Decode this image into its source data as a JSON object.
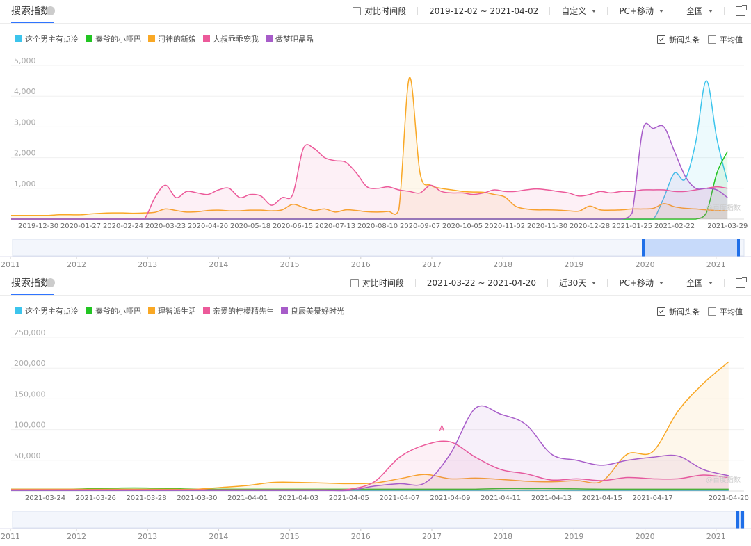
{
  "panels": [
    {
      "title": "搜索指数",
      "compare": "对比时间段",
      "date_range": "2019-12-02 ~ 2021-04-02",
      "period": "自定义",
      "device": "PC+移动",
      "region": "全国",
      "news": "新闻头条",
      "average": "平均值",
      "watermark": "@百度指数",
      "years": [
        "2011",
        "2012",
        "2013",
        "2014",
        "2015",
        "2016",
        "2017",
        "2018",
        "2019",
        "2020",
        "2021"
      ]
    },
    {
      "title": "搜索指数",
      "compare": "对比时间段",
      "date_range": "2021-03-22 ~ 2021-04-20",
      "period": "近30天",
      "device": "PC+移动",
      "region": "全国",
      "news": "新闻头条",
      "average": "平均值",
      "watermark": "@百度指数",
      "years": [
        "2011",
        "2012",
        "2013",
        "2014",
        "2015",
        "2016",
        "2017",
        "2018",
        "2019",
        "2020",
        "2021"
      ]
    }
  ],
  "chart_data": [
    {
      "type": "area",
      "grid": true,
      "ylim": [
        0,
        5000
      ],
      "yticks": [
        {
          "value": 1000,
          "label": "1,000"
        },
        {
          "value": 2000,
          "label": "2,000"
        },
        {
          "value": 3000,
          "label": "3,000"
        },
        {
          "value": 4000,
          "label": "4,000"
        },
        {
          "value": 5000,
          "label": "5,000"
        }
      ],
      "categories": [
        null,
        null,
        null,
        null,
        "2019-12-30",
        null,
        null,
        null,
        "2020-01-27",
        null,
        null,
        null,
        "2020-02-24",
        null,
        null,
        null,
        "2020-03-23",
        null,
        null,
        null,
        "2020-04-20",
        null,
        null,
        null,
        "2020-05-18",
        null,
        null,
        null,
        "2020-06-15",
        null,
        null,
        null,
        "2020-07-13",
        null,
        null,
        null,
        "2020-08-10",
        null,
        null,
        null,
        "2020-09-07",
        null,
        null,
        null,
        "2020-10-05",
        null,
        null,
        null,
        "2020-11-02",
        null,
        null,
        null,
        "2020-11-30",
        null,
        null,
        null,
        "2020-12-28",
        null,
        null,
        null,
        "2021-01-25",
        null,
        null,
        null,
        "2021-02-22",
        null,
        null,
        null,
        null,
        "2021-03-29"
      ],
      "series": [
        {
          "name": "这个男主有点冷",
          "color": "#3cc4ec",
          "values": [
            0,
            0,
            0,
            0,
            0,
            0,
            0,
            0,
            0,
            0,
            0,
            0,
            0,
            0,
            0,
            0,
            0,
            0,
            0,
            0,
            0,
            0,
            0,
            0,
            0,
            0,
            0,
            0,
            0,
            0,
            0,
            0,
            0,
            0,
            0,
            0,
            0,
            0,
            0,
            0,
            0,
            0,
            0,
            0,
            0,
            0,
            0,
            0,
            0,
            0,
            0,
            0,
            0,
            0,
            0,
            0,
            0,
            0,
            0,
            0,
            0,
            0,
            0,
            700,
            1500,
            1300,
            2500,
            4500,
            2600,
            1200
          ]
        },
        {
          "name": "秦爷的小哑巴",
          "color": "#22c522",
          "values": [
            0,
            0,
            0,
            0,
            0,
            0,
            0,
            0,
            0,
            0,
            0,
            0,
            0,
            0,
            0,
            0,
            0,
            0,
            0,
            0,
            0,
            0,
            0,
            0,
            0,
            0,
            0,
            0,
            0,
            0,
            0,
            0,
            0,
            0,
            0,
            0,
            0,
            0,
            0,
            0,
            0,
            0,
            0,
            0,
            0,
            0,
            0,
            0,
            0,
            0,
            0,
            0,
            0,
            0,
            0,
            0,
            0,
            0,
            0,
            0,
            0,
            0,
            0,
            0,
            0,
            0,
            0,
            200,
            1500,
            2200
          ]
        },
        {
          "name": "河神的新娘",
          "color": "#f9a825",
          "values": [
            120,
            120,
            120,
            120,
            120,
            120,
            140,
            140,
            140,
            170,
            190,
            200,
            200,
            190,
            200,
            220,
            330,
            280,
            230,
            240,
            280,
            290,
            270,
            270,
            290,
            290,
            270,
            300,
            480,
            380,
            280,
            330,
            230,
            300,
            280,
            240,
            230,
            250,
            300,
            4600,
            1500,
            1100,
            1000,
            950,
            900,
            880,
            870,
            800,
            720,
            420,
            330,
            300,
            300,
            290,
            270,
            260,
            420,
            300,
            290,
            300,
            330,
            330,
            350,
            500,
            400,
            350,
            330,
            300,
            280,
            270
          ]
        },
        {
          "name": "大叔乖乖宠我",
          "color": "#ec5a9a",
          "values": [
            0,
            0,
            0,
            0,
            0,
            0,
            0,
            0,
            0,
            0,
            0,
            0,
            0,
            0,
            0,
            700,
            1100,
            700,
            900,
            850,
            800,
            950,
            1000,
            700,
            800,
            750,
            450,
            700,
            800,
            2300,
            2300,
            2000,
            1900,
            1850,
            1500,
            1050,
            1000,
            1050,
            950,
            900,
            850,
            1100,
            900,
            850,
            850,
            800,
            850,
            950,
            900,
            900,
            950,
            980,
            950,
            900,
            850,
            750,
            800,
            900,
            850,
            900,
            900,
            950,
            950,
            950,
            900,
            900,
            950,
            1000,
            1050,
            1000
          ]
        },
        {
          "name": "做梦吧晶晶",
          "color": "#a75cc9",
          "values": [
            0,
            0,
            0,
            0,
            0,
            0,
            0,
            0,
            0,
            0,
            0,
            0,
            0,
            0,
            0,
            0,
            0,
            0,
            0,
            0,
            0,
            0,
            0,
            0,
            0,
            0,
            0,
            0,
            0,
            0,
            0,
            0,
            0,
            0,
            0,
            0,
            0,
            0,
            0,
            0,
            0,
            0,
            0,
            0,
            0,
            0,
            0,
            0,
            0,
            0,
            0,
            0,
            0,
            0,
            0,
            0,
            0,
            0,
            0,
            0,
            200,
            2900,
            2950,
            3000,
            2200,
            1400,
            1000,
            1000,
            950,
            700
          ]
        }
      ]
    },
    {
      "type": "area",
      "grid": true,
      "ylim": [
        0,
        250000
      ],
      "yticks": [
        {
          "value": 50000,
          "label": "50,000"
        },
        {
          "value": 100000,
          "label": "100,000"
        },
        {
          "value": 150000,
          "label": "150,000"
        },
        {
          "value": 200000,
          "label": "200,000"
        },
        {
          "value": 250000,
          "label": "250,000"
        }
      ],
      "categories": [
        null,
        null,
        "2021-03-24",
        null,
        "2021-03-26",
        null,
        "2021-03-28",
        null,
        "2021-03-30",
        null,
        "2021-04-01",
        null,
        "2021-04-03",
        null,
        "2021-04-05",
        null,
        "2021-04-07",
        null,
        "2021-04-09",
        null,
        "2021-04-11",
        null,
        "2021-04-13",
        null,
        "2021-04-15",
        null,
        "2021-04-17",
        null,
        null,
        "2021-04-20"
      ],
      "series": [
        {
          "name": "这个男主有点冷",
          "color": "#3cc4ec",
          "values": [
            1000,
            1000,
            1000,
            1000,
            1000,
            1000,
            1000,
            1000,
            1000,
            1000,
            1000,
            1000,
            1000,
            1000,
            1000,
            1000,
            1000,
            1000,
            1000,
            1000,
            1000,
            1000,
            1000,
            1000,
            1000,
            1000,
            1000,
            1000,
            1000,
            1000
          ]
        },
        {
          "name": "秦爷的小哑巴",
          "color": "#22c522",
          "values": [
            3000,
            3000,
            3000,
            3000,
            4000,
            5000,
            5000,
            4000,
            3000,
            3000,
            3000,
            3000,
            3000,
            3000,
            3000,
            3000,
            3000,
            3000,
            3000,
            3000,
            4000,
            4000,
            4000,
            3500,
            3000,
            3000,
            3000,
            3000,
            3000,
            3000
          ]
        },
        {
          "name": "理智派生活",
          "color": "#f9a825",
          "values": [
            3000,
            3000,
            3000,
            3000,
            3000,
            3000,
            3000,
            3000,
            3000,
            6000,
            9000,
            14000,
            14000,
            13000,
            12000,
            13000,
            20000,
            27000,
            20000,
            21000,
            19000,
            16000,
            15000,
            17000,
            16000,
            60000,
            64000,
            130000,
            175000,
            210000
          ]
        },
        {
          "name": "亲爱的柠檬精先生",
          "color": "#ec5a9a",
          "annotation": "A",
          "values": [
            2000,
            2000,
            2000,
            2000,
            2000,
            2000,
            2000,
            2000,
            2000,
            2000,
            2000,
            2000,
            2000,
            2000,
            3000,
            15000,
            55000,
            75000,
            80000,
            55000,
            35000,
            28000,
            18000,
            20000,
            17000,
            22000,
            20000,
            20000,
            26000,
            22000
          ]
        },
        {
          "name": "良辰美景好时光",
          "color": "#a75cc9",
          "values": [
            1000,
            1000,
            1000,
            1000,
            1000,
            1000,
            1000,
            1000,
            1000,
            1000,
            1000,
            1000,
            1000,
            1000,
            1000,
            8000,
            12000,
            13000,
            60000,
            135000,
            125000,
            108000,
            60000,
            50000,
            42000,
            50000,
            55000,
            57000,
            35000,
            25000
          ]
        }
      ]
    }
  ]
}
